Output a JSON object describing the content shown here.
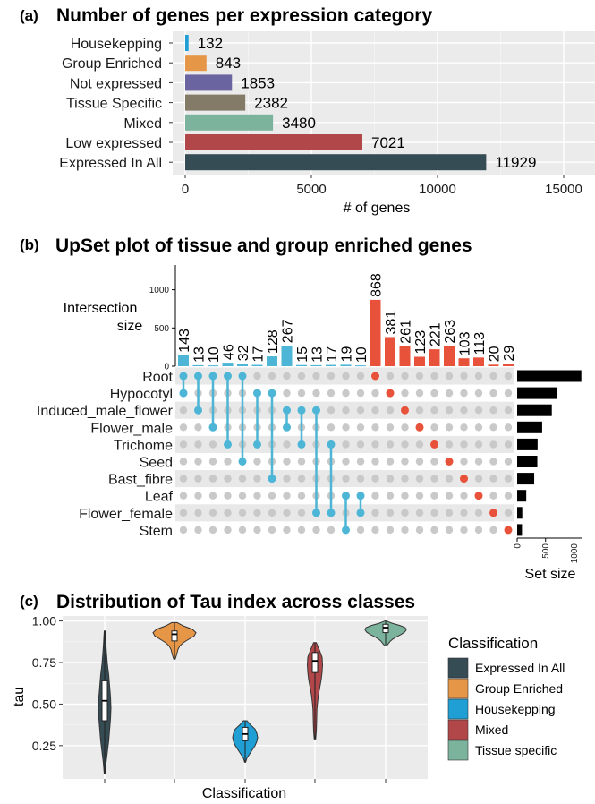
{
  "panel_a": {
    "tag": "(a)",
    "title": "Number of genes per expression category",
    "chart_data": {
      "type": "bar",
      "orientation": "horizontal",
      "categories": [
        "Housekepping",
        "Group Enriched",
        "Not expressed",
        "Tissue Specific",
        "Mixed",
        "Low expressed",
        "Expressed In All"
      ],
      "values": [
        132,
        843,
        1853,
        2382,
        3480,
        7021,
        11929
      ],
      "colors": [
        "#1f9fd4",
        "#e59646",
        "#6a64a0",
        "#837a67",
        "#7bb39c",
        "#b2474a",
        "#354c55"
      ],
      "xlabel": "# of genes",
      "xlim": [
        0,
        15000
      ],
      "xticks": [
        0,
        5000,
        10000,
        15000
      ],
      "grid": true
    }
  },
  "panel_b": {
    "tag": "(b)",
    "title": "UpSet plot of tissue and group enriched genes",
    "chart_data": {
      "type": "bar",
      "subtype": "upset",
      "sets": [
        "Root",
        "Hypocotyl",
        "Induced_male_flower",
        "Flower_male",
        "Trichome",
        "Seed",
        "Bast_fibre",
        "Leaf",
        "Flower_female",
        "Stem"
      ],
      "set_sizes": [
        1130,
        700,
        610,
        440,
        360,
        355,
        300,
        160,
        90,
        85
      ],
      "set_size_label": "Set size",
      "set_size_ticks": [
        0,
        500,
        1000
      ],
      "set_size_lim": [
        0,
        1150
      ],
      "intersection_label_line1": "Intersection",
      "intersection_label_line2": "size",
      "intersection_ticks": [
        0,
        500,
        1000
      ],
      "intersection_lim": [
        0,
        1300
      ],
      "intersections": [
        {
          "size": 143,
          "sets": [
            "Root",
            "Hypocotyl"
          ],
          "color": "#4db6d6"
        },
        {
          "size": 13,
          "sets": [
            "Root",
            "Induced_male_flower"
          ],
          "color": "#4db6d6"
        },
        {
          "size": 10,
          "sets": [
            "Root",
            "Flower_male"
          ],
          "color": "#4db6d6"
        },
        {
          "size": 46,
          "sets": [
            "Root",
            "Trichome"
          ],
          "color": "#4db6d6"
        },
        {
          "size": 32,
          "sets": [
            "Root",
            "Seed"
          ],
          "color": "#4db6d6"
        },
        {
          "size": 17,
          "sets": [
            "Hypocotyl",
            "Trichome"
          ],
          "color": "#4db6d6"
        },
        {
          "size": 128,
          "sets": [
            "Hypocotyl",
            "Bast_fibre"
          ],
          "color": "#4db6d6"
        },
        {
          "size": 267,
          "sets": [
            "Induced_male_flower",
            "Flower_male"
          ],
          "color": "#4db6d6"
        },
        {
          "size": 15,
          "sets": [
            "Induced_male_flower",
            "Trichome"
          ],
          "color": "#4db6d6"
        },
        {
          "size": 13,
          "sets": [
            "Induced_male_flower",
            "Flower_female"
          ],
          "color": "#4db6d6"
        },
        {
          "size": 17,
          "sets": [
            "Trichome",
            "Flower_female"
          ],
          "color": "#4db6d6"
        },
        {
          "size": 19,
          "sets": [
            "Leaf",
            "Stem"
          ],
          "color": "#4db6d6"
        },
        {
          "size": 10,
          "sets": [
            "Leaf",
            "Flower_female"
          ],
          "color": "#4db6d6"
        },
        {
          "size": 868,
          "sets": [
            "Root"
          ],
          "color": "#e8523a"
        },
        {
          "size": 381,
          "sets": [
            "Hypocotyl"
          ],
          "color": "#e8523a"
        },
        {
          "size": 261,
          "sets": [
            "Induced_male_flower"
          ],
          "color": "#e8523a"
        },
        {
          "size": 123,
          "sets": [
            "Flower_male"
          ],
          "color": "#e8523a"
        },
        {
          "size": 221,
          "sets": [
            "Trichome"
          ],
          "color": "#e8523a"
        },
        {
          "size": 263,
          "sets": [
            "Seed"
          ],
          "color": "#e8523a"
        },
        {
          "size": 103,
          "sets": [
            "Bast_fibre"
          ],
          "color": "#e8523a"
        },
        {
          "size": 113,
          "sets": [
            "Leaf"
          ],
          "color": "#e8523a"
        },
        {
          "size": 20,
          "sets": [
            "Flower_female"
          ],
          "color": "#e8523a"
        },
        {
          "size": 29,
          "sets": [
            "Stem"
          ],
          "color": "#e8523a"
        }
      ]
    }
  },
  "panel_c": {
    "tag": "(c)",
    "title": "Distribution of Tau index across classes",
    "chart_data": {
      "type": "violin",
      "xlabel": "Classification",
      "ylabel": "tau",
      "ylim": [
        0.05,
        1.03
      ],
      "yticks": [
        "0.25",
        "0.50",
        "0.75",
        "1.00"
      ],
      "legend_title": "Classification",
      "legend_position": "right",
      "classes": [
        {
          "name": "Expressed In All",
          "color": "#354c55",
          "min": 0.08,
          "q1": 0.4,
          "median": 0.52,
          "q3": 0.64,
          "max": 0.94
        },
        {
          "name": "Group Enriched",
          "color": "#e59646",
          "min": 0.77,
          "q1": 0.88,
          "median": 0.92,
          "q3": 0.94,
          "max": 0.99
        },
        {
          "name": "Housekepping",
          "color": "#1f9fd4",
          "min": 0.15,
          "q1": 0.28,
          "median": 0.32,
          "q3": 0.36,
          "max": 0.4
        },
        {
          "name": "Mixed",
          "color": "#b2474a",
          "min": 0.29,
          "q1": 0.69,
          "median": 0.76,
          "q3": 0.81,
          "max": 0.87
        },
        {
          "name": "Tissue specific",
          "color": "#7bb39c",
          "min": 0.85,
          "q1": 0.93,
          "median": 0.96,
          "q3": 0.98,
          "max": 1.0
        }
      ]
    }
  }
}
